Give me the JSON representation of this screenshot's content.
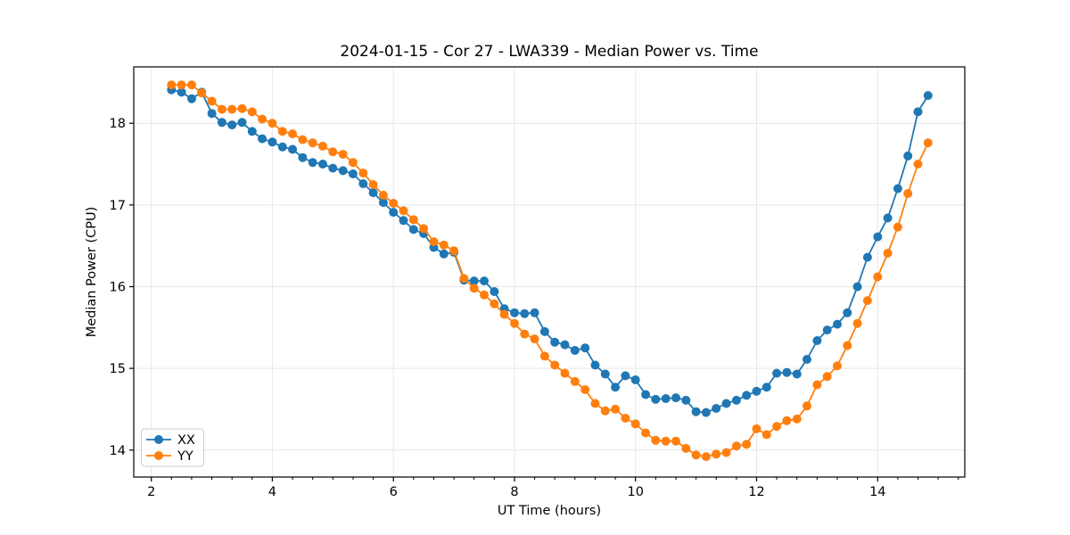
{
  "title": "2024-01-15 - Cor 27 - LWA339 - Median Power vs. Time",
  "colors": {
    "background": "#ffffff",
    "grid": "#e7e7e7",
    "spine": "#000000",
    "tick": "#000000",
    "legend_border": "#cccccc",
    "series_blue": "#1f77b4",
    "series_orange": "#ff7f0e"
  },
  "chart_data": {
    "type": "line",
    "title": "2024-01-15 - Cor 27 - LWA339 - Median Power vs. Time",
    "xlabel": "UT Time (hours)",
    "ylabel": "Median Power (CPU)",
    "xlim": [
      1.71,
      15.44
    ],
    "ylim": [
      13.67,
      18.69
    ],
    "x_major_ticks": [
      2,
      4,
      6,
      8,
      10,
      12,
      14
    ],
    "x_minor_step": 0.3333,
    "y_major_ticks": [
      14,
      15,
      16,
      17,
      18
    ],
    "grid": true,
    "legend_position": "lower left",
    "marker": "circle",
    "x": [
      2.333,
      2.5,
      2.667,
      2.833,
      3,
      3.167,
      3.333,
      3.5,
      3.667,
      3.833,
      4,
      4.167,
      4.333,
      4.5,
      4.667,
      4.833,
      5,
      5.167,
      5.333,
      5.5,
      5.667,
      5.833,
      6,
      6.167,
      6.333,
      6.5,
      6.667,
      6.833,
      7,
      7.167,
      7.333,
      7.5,
      7.667,
      7.833,
      8,
      8.167,
      8.333,
      8.5,
      8.667,
      8.833,
      9,
      9.167,
      9.333,
      9.5,
      9.667,
      9.833,
      10,
      10.167,
      10.333,
      10.5,
      10.667,
      10.833,
      11,
      11.167,
      11.333,
      11.5,
      11.667,
      11.833,
      12,
      12.167,
      12.333,
      12.5,
      12.667,
      12.833,
      13,
      13.167,
      13.333,
      13.5,
      13.667,
      13.833,
      14,
      14.167,
      14.333,
      14.5,
      14.667,
      14.833
    ],
    "series": [
      {
        "name": "XX",
        "color": "#1f77b4",
        "values": [
          18.41,
          18.38,
          18.3,
          18.38,
          18.12,
          18.01,
          17.98,
          18.01,
          17.9,
          17.81,
          17.77,
          17.71,
          17.68,
          17.58,
          17.52,
          17.5,
          17.45,
          17.42,
          17.38,
          17.26,
          17.15,
          17.03,
          16.91,
          16.81,
          16.7,
          16.65,
          16.48,
          16.4,
          16.42,
          16.08,
          16.07,
          16.07,
          15.94,
          15.73,
          15.68,
          15.67,
          15.68,
          15.45,
          15.32,
          15.29,
          15.22,
          15.25,
          15.04,
          14.93,
          14.77,
          14.91,
          14.86,
          14.68,
          14.62,
          14.63,
          14.64,
          14.61,
          14.47,
          14.46,
          14.51,
          14.57,
          14.61,
          14.67,
          14.72,
          14.77,
          14.94,
          14.95,
          14.93,
          15.11,
          15.34,
          15.47,
          15.54,
          15.68,
          16.0,
          16.36,
          16.61,
          16.84,
          17.2,
          17.6,
          18.14,
          18.34
        ]
      },
      {
        "name": "YY",
        "color": "#ff7f0e",
        "values": [
          18.47,
          18.47,
          18.47,
          18.37,
          18.27,
          18.17,
          18.17,
          18.18,
          18.14,
          18.05,
          18.0,
          17.9,
          17.87,
          17.8,
          17.76,
          17.72,
          17.65,
          17.62,
          17.52,
          17.39,
          17.25,
          17.12,
          17.02,
          16.93,
          16.82,
          16.71,
          16.55,
          16.51,
          16.44,
          16.1,
          15.98,
          15.9,
          15.79,
          15.66,
          15.55,
          15.42,
          15.36,
          15.15,
          15.04,
          14.94,
          14.84,
          14.74,
          14.57,
          14.48,
          14.5,
          14.39,
          14.32,
          14.21,
          14.12,
          14.11,
          14.11,
          14.02,
          13.94,
          13.92,
          13.95,
          13.97,
          14.05,
          14.07,
          14.26,
          14.19,
          14.29,
          14.36,
          14.38,
          14.54,
          14.8,
          14.9,
          15.03,
          15.28,
          15.55,
          15.83,
          16.12,
          16.41,
          16.73,
          17.14,
          17.5,
          17.76
        ]
      }
    ]
  }
}
